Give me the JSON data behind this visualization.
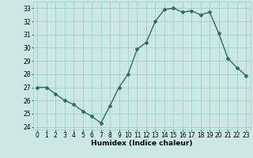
{
  "x": [
    0,
    1,
    2,
    3,
    4,
    5,
    6,
    7,
    8,
    9,
    10,
    11,
    12,
    13,
    14,
    15,
    16,
    17,
    18,
    19,
    20,
    21,
    22,
    23
  ],
  "y": [
    27.0,
    27.0,
    26.5,
    26.0,
    25.7,
    25.2,
    24.8,
    24.3,
    25.6,
    27.0,
    28.0,
    29.9,
    30.4,
    32.0,
    32.9,
    33.0,
    32.7,
    32.8,
    32.5,
    32.7,
    31.1,
    29.2,
    28.5,
    27.9
  ],
  "bg_color": "#cce8e4",
  "line_color": "#2d6e65",
  "marker": "D",
  "marker_size": 2.0,
  "line_width": 1.0,
  "xlabel": "Humidex (Indice chaleur)",
  "xlim": [
    -0.5,
    23.5
  ],
  "ylim": [
    23.8,
    33.5
  ],
  "yticks": [
    24,
    25,
    26,
    27,
    28,
    29,
    30,
    31,
    32,
    33
  ],
  "xticks": [
    0,
    1,
    2,
    3,
    4,
    5,
    6,
    7,
    8,
    9,
    10,
    11,
    12,
    13,
    14,
    15,
    16,
    17,
    18,
    19,
    20,
    21,
    22,
    23
  ],
  "xtick_labels": [
    "0",
    "1",
    "2",
    "3",
    "4",
    "5",
    "6",
    "7",
    "8",
    "9",
    "10",
    "11",
    "12",
    "13",
    "14",
    "15",
    "16",
    "17",
    "18",
    "19",
    "20",
    "21",
    "22",
    "23"
  ],
  "grid_color": "#9ecfca",
  "tick_fontsize": 5.5,
  "xlabel_fontsize": 6.5
}
